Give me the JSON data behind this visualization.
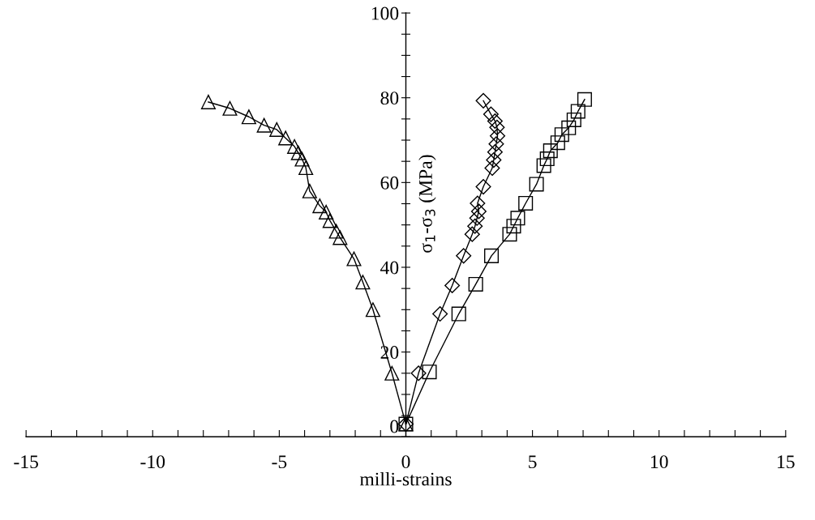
{
  "chart_data": {
    "type": "line",
    "xlabel": "milli-strains",
    "ylabel": "σ$_{1}$-σ$_{3}$ (MPa)",
    "xlim": [
      -15,
      15
    ],
    "xticks": [
      -15,
      {
        "value": -14,
        "label": null
      },
      {
        "value": -13,
        "label": null
      },
      {
        "value": -12,
        "label": null
      },
      {
        "value": -11,
        "label": null
      },
      -10,
      {
        "value": -9,
        "label": null
      },
      {
        "value": -8,
        "label": null
      },
      {
        "value": -7,
        "label": null
      },
      {
        "value": -6,
        "label": null
      },
      -5,
      {
        "value": -4,
        "label": null
      },
      {
        "value": -3,
        "label": null
      },
      {
        "value": -2,
        "label": null
      },
      {
        "value": -1,
        "label": null
      },
      0,
      {
        "value": 1,
        "label": null
      },
      {
        "value": 2,
        "label": null
      },
      {
        "value": 3,
        "label": null
      },
      {
        "value": 4,
        "label": null
      },
      5,
      {
        "value": 6,
        "label": null
      },
      {
        "value": 7,
        "label": null
      },
      {
        "value": 8,
        "label": null
      },
      {
        "value": 9,
        "label": null
      },
      10,
      {
        "value": 11,
        "label": null
      },
      {
        "value": 12,
        "label": null
      },
      {
        "value": 13,
        "label": null
      },
      {
        "value": 14,
        "label": null
      },
      15
    ],
    "ylim": [
      0,
      100
    ],
    "yticks": [
      0,
      {
        "value": 5,
        "label": null
      },
      {
        "value": 10,
        "label": null
      },
      {
        "value": 15,
        "label": null
      },
      20,
      {
        "value": 25,
        "label": null
      },
      {
        "value": 30,
        "label": null
      },
      {
        "value": 35,
        "label": null
      },
      40,
      {
        "value": 45,
        "label": null
      },
      {
        "value": 50,
        "label": null
      },
      {
        "value": 55,
        "label": null
      },
      60,
      {
        "value": 65,
        "label": null
      },
      {
        "value": 70,
        "label": null
      },
      {
        "value": 75,
        "label": null
      },
      80,
      {
        "value": 85,
        "label": null
      },
      {
        "value": 90,
        "label": null
      },
      {
        "value": 95,
        "label": null
      },
      100
    ],
    "grid": false,
    "legend": false,
    "line_style": "solid",
    "series": [
      {
        "color": "#000000",
        "marker": "triangle",
        "x": [
          -7.8,
          -6.95,
          -6.2,
          -5.6,
          -5.1,
          -4.75,
          -4.4,
          -4.25,
          -4.1,
          -3.95,
          -3.8,
          -3.4,
          -3.15,
          -3.0,
          -2.75,
          -2.6,
          -2.05,
          -1.7,
          -1.3,
          -0.55,
          0
        ],
        "values": [
          79,
          77.5,
          75.5,
          73.5,
          72.5,
          70.5,
          68.5,
          67,
          65.5,
          63.5,
          58,
          54.5,
          53,
          51,
          48.5,
          47,
          42,
          36.5,
          30,
          15,
          3
        ]
      },
      {
        "color": "#000000",
        "marker": "diamond",
        "x": [
          3.06,
          3.36,
          3.52,
          3.6,
          3.62,
          3.57,
          3.52,
          3.47,
          3.41,
          3.06,
          2.83,
          2.88,
          2.81,
          2.73,
          2.62,
          2.28,
          1.83,
          1.35,
          0.5,
          0
        ],
        "values": [
          79.3,
          76.1,
          74.5,
          73,
          71,
          69.1,
          67.2,
          65.3,
          63.4,
          59,
          55.1,
          53.2,
          51.6,
          49.7,
          47.8,
          42.7,
          35.7,
          29,
          15,
          3
        ]
      },
      {
        "color": "#000000",
        "marker": "square",
        "x": [
          7.06,
          6.8,
          6.64,
          6.43,
          6.16,
          6.0,
          5.71,
          5.58,
          5.45,
          5.16,
          4.73,
          4.42,
          4.26,
          4.1,
          3.38,
          2.76,
          2.09,
          0.93,
          0
        ],
        "values": [
          79.6,
          76.8,
          74.8,
          72.9,
          71.3,
          69.4,
          67.5,
          65.6,
          64,
          59.6,
          55.1,
          51.6,
          49.7,
          47.8,
          42.7,
          36,
          29,
          15.3,
          3
        ]
      }
    ]
  }
}
